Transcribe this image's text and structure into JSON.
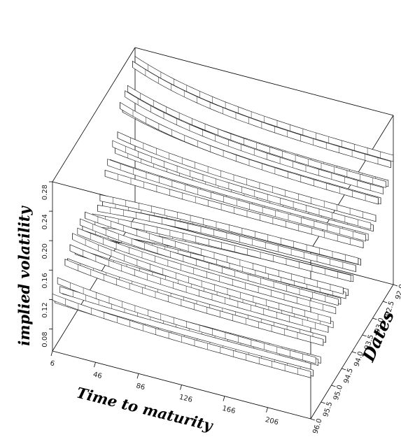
{
  "chart_data": {
    "type": "surface",
    "title": "",
    "xlabel": "Time to maturity",
    "ylabel": "implied volatility",
    "zlabel": "Dates",
    "x_ticks": [
      "6",
      "46",
      "86",
      "126",
      "166",
      "206"
    ],
    "y_ticks": [
      "0.08",
      "0.12",
      "0.16",
      "0.20",
      "0.24",
      "0.28"
    ],
    "date_ticks": [
      "92.0",
      "92.5",
      "93.0",
      "93.5",
      "94.0",
      "94.5",
      "95.0",
      "95.5",
      "96.0"
    ],
    "xlim": [
      6,
      246
    ],
    "ylim": [
      0.05,
      0.28
    ],
    "date_range": [
      92.0,
      96.0
    ],
    "grid": false,
    "legend": "none",
    "line_color": "#111111",
    "background": "#ffffff",
    "surface_note_samples": {
      "dates": [
        92.0,
        92.5,
        93.0,
        93.5,
        94.0,
        94.5,
        95.0,
        95.5,
        96.0
      ],
      "short_end_vol": [
        0.26,
        0.24,
        0.2,
        0.17,
        0.13,
        0.16,
        0.16,
        0.13,
        0.12
      ],
      "long_end_vol": [
        0.22,
        0.2,
        0.18,
        0.17,
        0.15,
        0.15,
        0.14,
        0.12,
        0.11
      ]
    }
  }
}
